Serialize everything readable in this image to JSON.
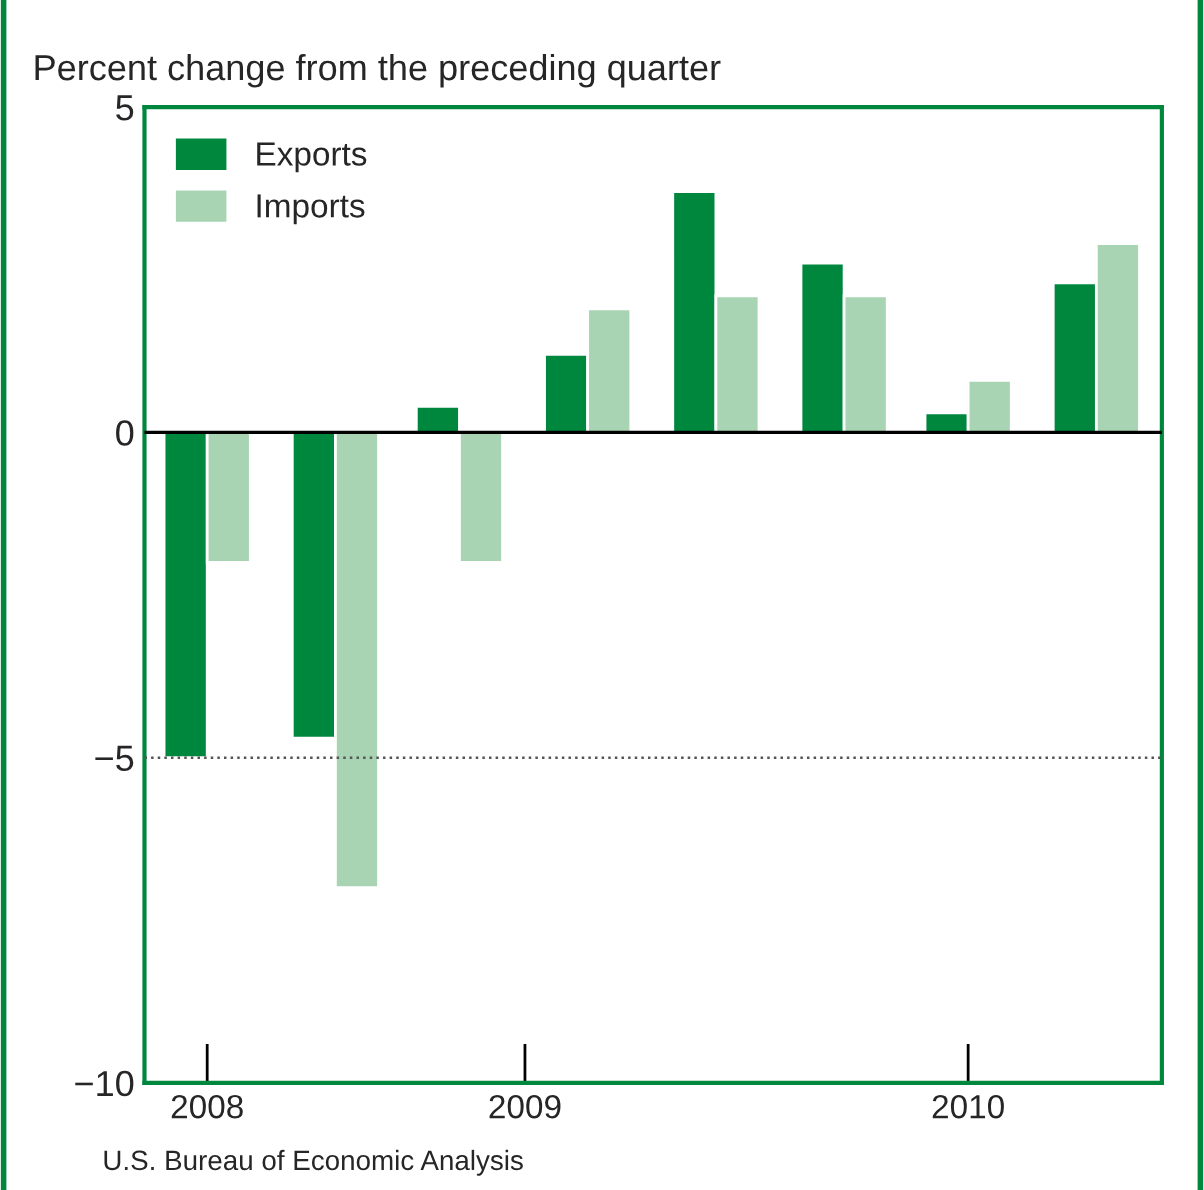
{
  "chart_data": {
    "type": "bar",
    "ylabel": "Percent change from the preceding quarter",
    "x": [
      "2008-11-15",
      "2009-02-15",
      "2009-05-15",
      "2009-08-15",
      "2009-11-15",
      "2010-02-15",
      "2010-05-15",
      "2010-08-15"
    ],
    "xlim": [
      "2008-10-01",
      "2010-10-01"
    ],
    "xticks": [
      {
        "value": "2008-11-15",
        "label": "2008"
      },
      {
        "value": "2009-07-01",
        "label": "2009"
      },
      {
        "value": "2010-05-15",
        "label": "2010"
      }
    ],
    "ylim": [
      -10,
      5
    ],
    "yticks": [
      {
        "value": -10,
        "label": "−10"
      },
      {
        "value": -5,
        "label": "−5"
      },
      0,
      5
    ],
    "series": [
      {
        "name": "Exports",
        "color": "#00873e",
        "values": [
          -5.0,
          -4.7,
          0.4,
          1.2,
          3.7,
          2.6,
          0.3,
          2.3
        ]
      },
      {
        "name": "Imports",
        "color": "#a8d4b4",
        "values": [
          -2.0,
          -7.0,
          -2.0,
          1.9,
          2.1,
          2.1,
          0.8,
          2.9
        ]
      }
    ],
    "ref_lines": [
      {
        "axis": "y",
        "value": 0,
        "label": null,
        "color": "#000000",
        "line_style": "solid"
      },
      {
        "axis": "y",
        "value": -5,
        "label": null,
        "color": "#555555",
        "line_style": "dotted"
      }
    ],
    "grid": false,
    "legend": "top left",
    "annotations": [
      "U.S. Bureau of Economic Analysis"
    ]
  }
}
